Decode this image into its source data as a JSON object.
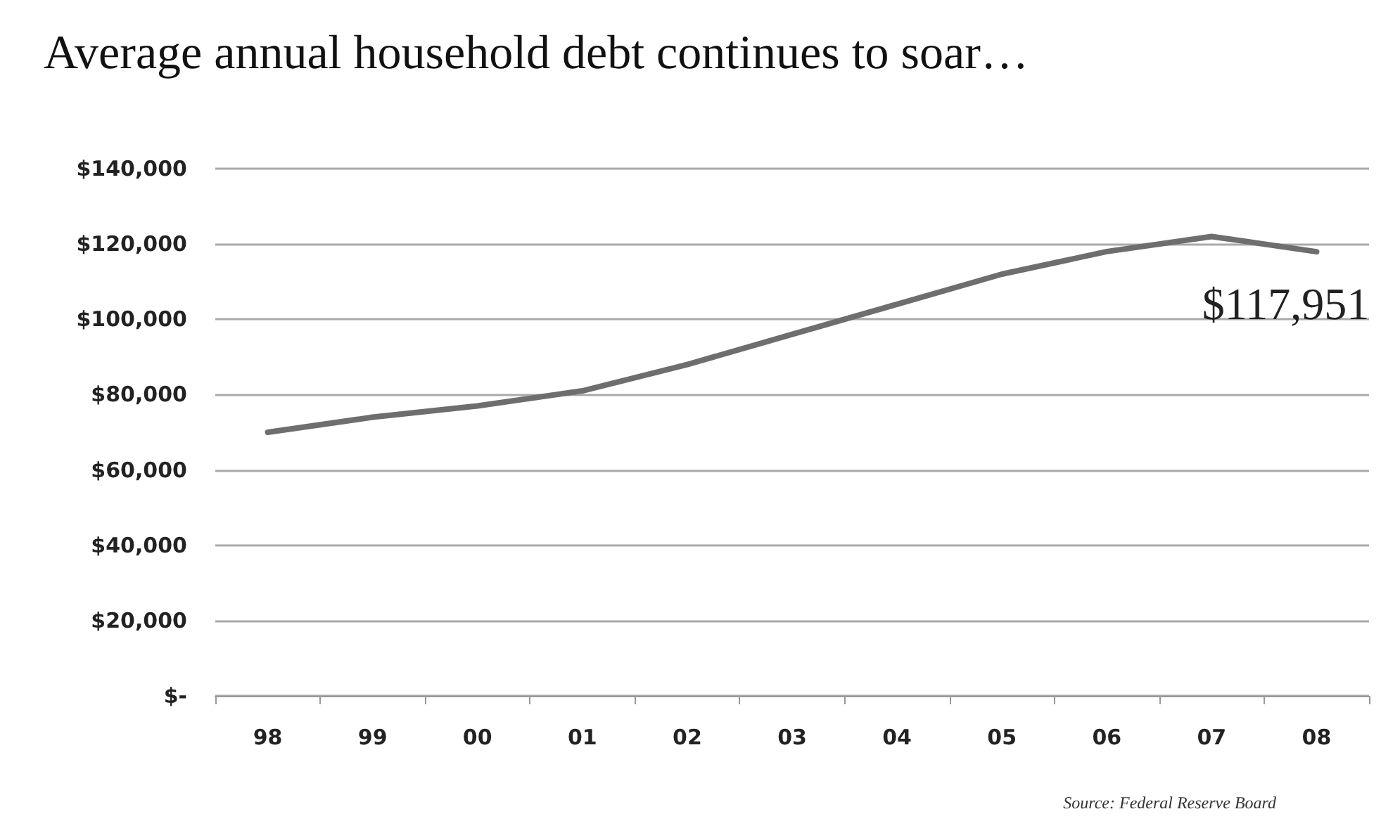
{
  "chart_data": {
    "type": "line",
    "title": "Average annual household debt continues to soar…",
    "categories": [
      "98",
      "99",
      "00",
      "01",
      "02",
      "03",
      "04",
      "05",
      "06",
      "07",
      "08"
    ],
    "series": [
      {
        "color": "#6e6e6e",
        "values": [
          70000,
          74000,
          77000,
          81000,
          88000,
          96000,
          104000,
          112000,
          118000,
          122000,
          117951
        ]
      }
    ],
    "ylim": [
      0,
      140000
    ],
    "yticks": [
      {
        "value": 0,
        "label": "$-"
      },
      {
        "value": 20000,
        "label": "$20,000"
      },
      {
        "value": 40000,
        "label": "$40,000"
      },
      {
        "value": 60000,
        "label": "$60,000"
      },
      {
        "value": 80000,
        "label": "$80,000"
      },
      {
        "value": 100000,
        "label": "$100,000"
      },
      {
        "value": 120000,
        "label": "$120,000"
      },
      {
        "value": 140000,
        "label": "$140,000"
      }
    ],
    "grid": "y",
    "marker": "none",
    "line_style": "solid",
    "annotations": [
      {
        "text": "$117,951",
        "x": "08",
        "y": 117951
      },
      "Source: Federal Reserve Board"
    ]
  }
}
